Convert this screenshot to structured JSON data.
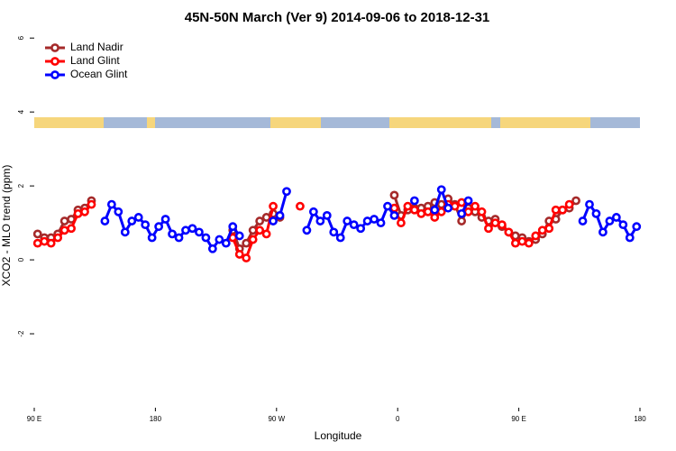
{
  "chart_data": {
    "type": "line",
    "title": "45N-50N March (Ver 9)   2014-09-06 to 2018-12-31",
    "x_label": "Longitude",
    "y_label": "XCO2 - MLO trend (ppm)",
    "xlim": [
      90,
      540
    ],
    "ylim": [
      -4,
      6.2
    ],
    "xticks": [
      {
        "value": 90,
        "label": "90 E"
      },
      180,
      {
        "value": 270,
        "label": "90 W"
      },
      {
        "value": 360,
        "label": "0"
      },
      {
        "value": 450,
        "label": "90 E"
      },
      {
        "value": 540,
        "label": "180"
      }
    ],
    "yticks": [
      -2,
      0,
      2,
      4,
      6
    ],
    "legend": "top-left",
    "x": [
      92.5,
      97.5,
      102.5,
      107.5,
      112.5,
      117.5,
      122.5,
      127.5,
      132.5,
      137.5,
      142.5,
      147.5,
      152.5,
      157.5,
      162.5,
      167.5,
      172.5,
      177.5,
      182.5,
      187.5,
      192.5,
      197.5,
      202.5,
      207.5,
      212.5,
      217.5,
      222.5,
      227.5,
      232.5,
      237.5,
      242.5,
      247.5,
      252.5,
      257.5,
      262.5,
      267.5,
      272.5,
      277.5,
      282.5,
      287.5,
      292.5,
      297.5,
      302.5,
      307.5,
      312.5,
      317.5,
      322.5,
      327.5,
      332.5,
      337.5,
      342.5,
      347.5,
      352.5,
      357.5,
      362.5,
      367.5,
      372.5,
      377.5,
      382.5,
      387.5,
      392.5,
      397.5,
      402.5,
      407.5,
      412.5,
      417.5,
      422.5,
      427.5,
      432.5,
      437.5,
      442.5,
      447.5,
      452.5,
      457.5,
      462.5,
      467.5,
      472.5,
      477.5,
      482.5,
      487.5,
      492.5,
      497.5,
      502.5,
      507.5,
      512.5,
      517.5,
      522.5,
      527.5,
      532.5,
      537.5
    ],
    "series": [
      {
        "name": "Land Nadir",
        "color": "#a52a2a",
        "values": [
          0.7,
          0.6,
          0.6,
          0.7,
          1.05,
          1.1,
          1.35,
          1.4,
          1.6,
          null,
          null,
          null,
          null,
          null,
          null,
          null,
          null,
          null,
          null,
          null,
          null,
          null,
          null,
          null,
          null,
          null,
          null,
          null,
          null,
          0.8,
          0.3,
          0.45,
          0.8,
          1.05,
          1.15,
          1.25,
          1.15,
          null,
          null,
          null,
          null,
          null,
          null,
          null,
          null,
          null,
          null,
          null,
          null,
          null,
          null,
          null,
          null,
          1.75,
          1.2,
          1.35,
          1.4,
          1.4,
          1.45,
          1.55,
          1.5,
          1.65,
          1.5,
          1.05,
          1.4,
          1.3,
          1.15,
          1.05,
          1.1,
          0.9,
          0.75,
          0.65,
          0.6,
          0.5,
          0.55,
          0.7,
          1.05,
          1.1,
          1.35,
          1.4,
          1.6,
          null,
          null,
          null,
          null,
          null,
          null,
          null,
          null,
          null
        ]
      },
      {
        "name": "Land Glint",
        "color": "#ff0000",
        "values": [
          0.45,
          0.5,
          0.45,
          0.6,
          0.8,
          0.85,
          1.25,
          1.3,
          1.5,
          null,
          null,
          null,
          null,
          null,
          null,
          null,
          null,
          null,
          null,
          null,
          null,
          null,
          null,
          null,
          null,
          null,
          null,
          null,
          null,
          0.6,
          0.15,
          0.05,
          0.55,
          0.8,
          0.7,
          1.45,
          null,
          null,
          null,
          1.45,
          null,
          null,
          null,
          null,
          null,
          null,
          null,
          null,
          null,
          null,
          null,
          null,
          null,
          1.4,
          1.0,
          1.45,
          1.35,
          1.25,
          1.3,
          1.15,
          1.3,
          1.5,
          1.45,
          1.55,
          1.3,
          1.45,
          1.3,
          0.85,
          1.0,
          0.95,
          0.75,
          0.45,
          0.5,
          0.45,
          0.65,
          0.8,
          0.85,
          1.35,
          1.35,
          1.5,
          null,
          null,
          null,
          null,
          null,
          null,
          null,
          null,
          null,
          null
        ]
      },
      {
        "name": "Ocean Glint",
        "color": "#0000ff",
        "values": [
          null,
          null,
          null,
          null,
          null,
          null,
          null,
          null,
          null,
          null,
          1.05,
          1.5,
          1.3,
          0.75,
          1.05,
          1.15,
          0.95,
          0.6,
          0.9,
          1.1,
          0.7,
          0.6,
          0.8,
          0.85,
          0.75,
          0.6,
          0.3,
          0.55,
          0.45,
          0.9,
          0.65,
          null,
          null,
          null,
          null,
          1.05,
          1.2,
          1.85,
          null,
          null,
          0.8,
          1.3,
          1.05,
          1.2,
          0.75,
          0.6,
          1.05,
          0.95,
          0.85,
          1.05,
          1.1,
          1.0,
          1.45,
          1.2,
          null,
          null,
          1.6,
          null,
          null,
          1.35,
          1.9,
          1.4,
          null,
          1.25,
          1.6,
          null,
          null,
          null,
          null,
          null,
          null,
          null,
          null,
          null,
          null,
          null,
          null,
          null,
          null,
          null,
          null,
          1.05,
          1.5,
          1.25,
          0.75,
          1.05,
          1.15,
          0.95,
          0.6,
          0.9
        ]
      }
    ]
  }
}
